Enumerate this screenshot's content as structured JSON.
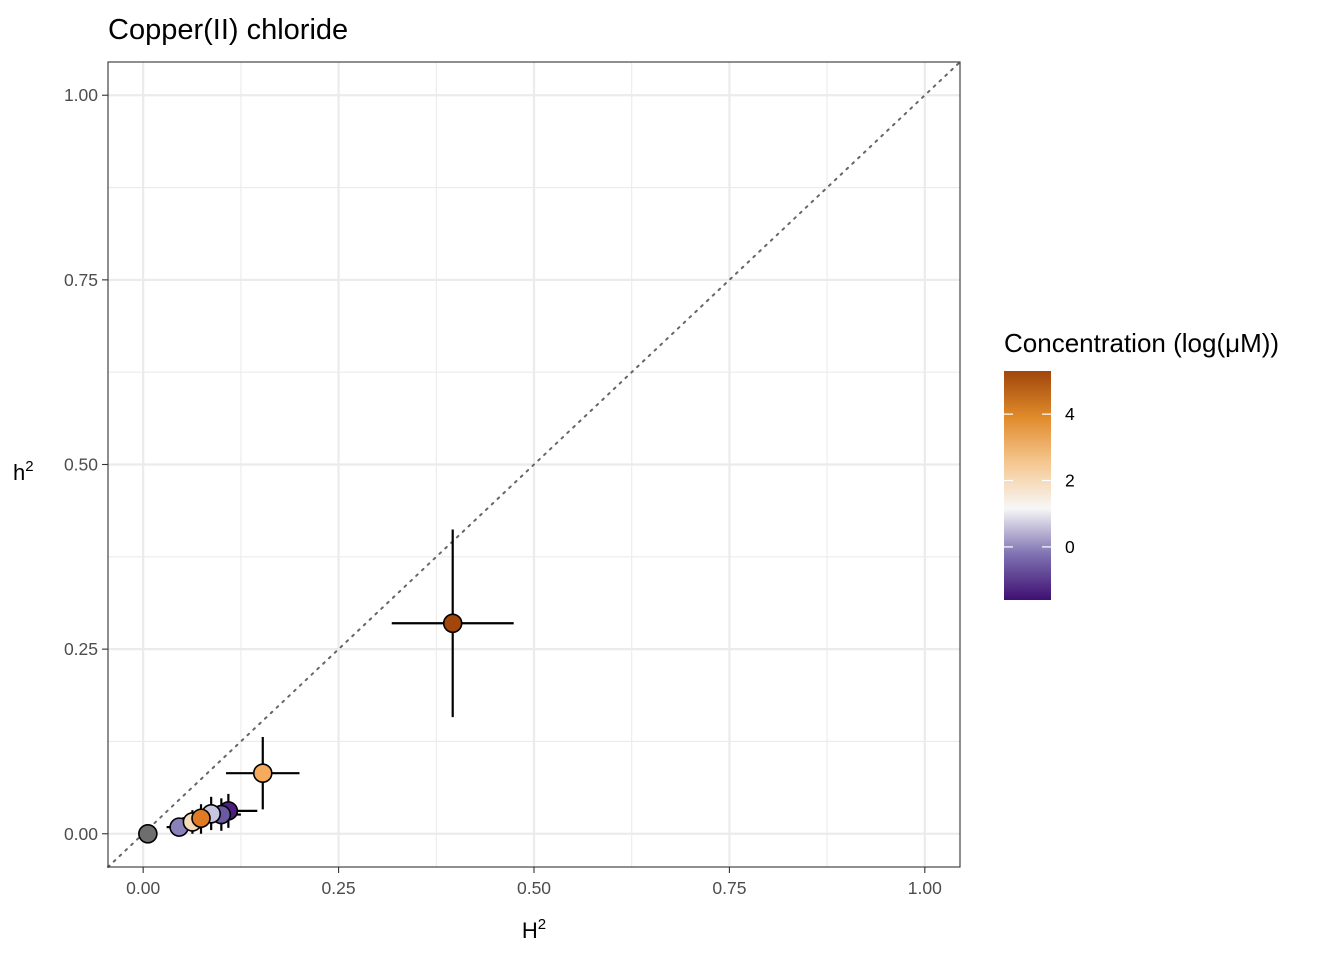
{
  "chart_data": {
    "type": "scatter",
    "title": "Copper(II) chloride",
    "xlabel": "H",
    "xlabel_superscript": "2",
    "ylabel": "h",
    "ylabel_superscript": "2",
    "xlim": [
      -0.045,
      1.045
    ],
    "ylim": [
      -0.045,
      1.045
    ],
    "x_ticks": [
      0.0,
      0.25,
      0.5,
      0.75,
      1.0
    ],
    "x_tick_labels": [
      "0.00",
      "0.25",
      "0.50",
      "0.75",
      "1.00"
    ],
    "y_ticks": [
      0.0,
      0.25,
      0.5,
      0.75,
      1.0
    ],
    "y_tick_labels": [
      "0.00",
      "0.25",
      "0.50",
      "0.75",
      "1.00"
    ],
    "minor_ticks": [
      0.125,
      0.375,
      0.625,
      0.875
    ],
    "grid": true,
    "reference_line": {
      "slope": 1,
      "intercept": 0,
      "style": "dotted"
    },
    "points": [
      {
        "x": 0.006,
        "y": 0.0,
        "xmin": 0.006,
        "xmax": 0.006,
        "ymin": 0.0,
        "ymax": 0.0,
        "conc": null,
        "color": "#6e6e6e"
      },
      {
        "x": 0.046,
        "y": 0.009,
        "xmin": 0.03,
        "xmax": 0.062,
        "ymin": 0.002,
        "ymax": 0.016,
        "conc": 0.2,
        "color": "#8a81ba"
      },
      {
        "x": 0.109,
        "y": 0.031,
        "xmin": 0.085,
        "xmax": 0.146,
        "ymin": 0.008,
        "ymax": 0.054,
        "conc": -1.4,
        "color": "#4a1f80"
      },
      {
        "x": 0.1,
        "y": 0.026,
        "xmin": 0.075,
        "xmax": 0.125,
        "ymin": 0.004,
        "ymax": 0.048,
        "conc": -0.4,
        "color": "#6a5aa3"
      },
      {
        "x": 0.087,
        "y": 0.027,
        "xmin": 0.062,
        "xmax": 0.112,
        "ymin": 0.005,
        "ymax": 0.05,
        "conc": 1.0,
        "color": "#c9c6e2"
      },
      {
        "x": 0.063,
        "y": 0.016,
        "xmin": 0.038,
        "xmax": 0.088,
        "ymin": 0.0,
        "ymax": 0.032,
        "conc": 2.8,
        "color": "#f7dcba"
      },
      {
        "x": 0.074,
        "y": 0.021,
        "xmin": 0.05,
        "xmax": 0.098,
        "ymin": 0.0,
        "ymax": 0.04,
        "conc": 4.8,
        "color": "#e07b25"
      },
      {
        "x": 0.153,
        "y": 0.082,
        "xmin": 0.106,
        "xmax": 0.2,
        "ymin": 0.033,
        "ymax": 0.131,
        "conc": 3.8,
        "color": "#f4ab5c"
      },
      {
        "x": 0.396,
        "y": 0.285,
        "xmin": 0.318,
        "xmax": 0.474,
        "ymin": 0.158,
        "ymax": 0.412,
        "conc": 5.2,
        "color": "#a3460c"
      }
    ],
    "legend": {
      "title": "Concentration (log(μM))",
      "position": "right",
      "range": [
        -1.6,
        5.3
      ],
      "ticks": [
        0,
        2,
        4
      ],
      "tick_labels": [
        "0",
        "2",
        "4"
      ],
      "colors": [
        "#3f0f72",
        "#7f72b2",
        "#f7f7f7",
        "#f5c790",
        "#e08a2a",
        "#a0460c"
      ]
    }
  }
}
